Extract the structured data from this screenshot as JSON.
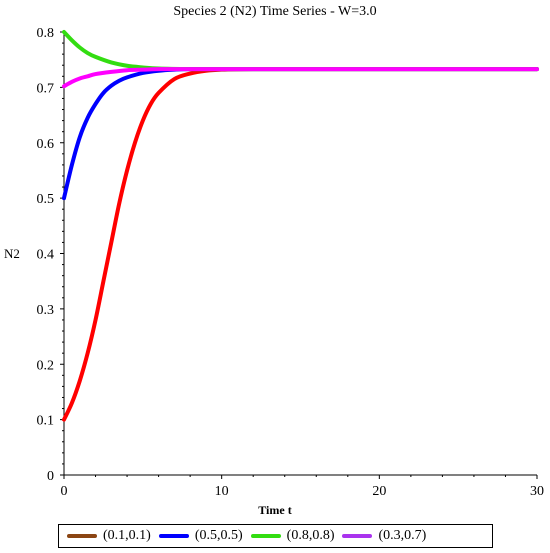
{
  "chart_data": {
    "type": "line",
    "title": "Species 2 (N2) Time Series - W=3.0",
    "xlabel": "Time t",
    "ylabel": "N2",
    "xlim": [
      0,
      30
    ],
    "ylim": [
      0,
      0.8
    ],
    "x_ticks": [
      "0",
      "10",
      "20",
      "30"
    ],
    "y_ticks": [
      "0",
      "0.1",
      "0.2",
      "0.3",
      "0.4",
      "0.5",
      "0.6",
      "0.7",
      "0.8"
    ],
    "grid": false,
    "legend_position": "bottom",
    "series": [
      {
        "name": "(0.1,0.1)",
        "color": "#ff0000",
        "legend_color": "#8b4513",
        "x": [
          0,
          0.5,
          1,
          1.5,
          2,
          2.5,
          3,
          3.5,
          4,
          4.5,
          5,
          5.5,
          6,
          7,
          8,
          9,
          10,
          12,
          15,
          20,
          25,
          30
        ],
        "y": [
          0.1,
          0.13,
          0.17,
          0.22,
          0.28,
          0.35,
          0.42,
          0.49,
          0.55,
          0.6,
          0.64,
          0.67,
          0.69,
          0.715,
          0.725,
          0.73,
          0.732,
          0.733,
          0.733,
          0.733,
          0.733,
          0.733
        ]
      },
      {
        "name": "(0.5,0.5)",
        "color": "#0000ff",
        "legend_color": "#0000ff",
        "x": [
          0,
          0.5,
          1,
          1.5,
          2,
          2.5,
          3,
          3.5,
          4,
          5,
          6,
          7,
          8,
          10,
          15,
          20,
          25,
          30
        ],
        "y": [
          0.5,
          0.56,
          0.61,
          0.645,
          0.67,
          0.69,
          0.703,
          0.712,
          0.718,
          0.726,
          0.73,
          0.732,
          0.733,
          0.733,
          0.733,
          0.733,
          0.733,
          0.733
        ]
      },
      {
        "name": "(0.8,0.8)",
        "color": "#33dd11",
        "legend_color": "#33dd11",
        "x": [
          0,
          0.5,
          1,
          1.5,
          2,
          3,
          4,
          5,
          6,
          8,
          10,
          15,
          20,
          25,
          30
        ],
        "y": [
          0.8,
          0.785,
          0.772,
          0.762,
          0.755,
          0.745,
          0.739,
          0.736,
          0.734,
          0.733,
          0.733,
          0.733,
          0.733,
          0.733,
          0.733
        ]
      },
      {
        "name": "(0.3,0.7)",
        "color": "#ff00ff",
        "legend_color": "#aa33ee",
        "x": [
          0,
          0.5,
          1,
          1.5,
          2,
          3,
          4,
          5,
          6,
          8,
          10,
          15,
          20,
          25,
          30
        ],
        "y": [
          0.702,
          0.71,
          0.716,
          0.72,
          0.724,
          0.728,
          0.731,
          0.732,
          0.733,
          0.733,
          0.733,
          0.733,
          0.733,
          0.733,
          0.733
        ]
      }
    ]
  }
}
